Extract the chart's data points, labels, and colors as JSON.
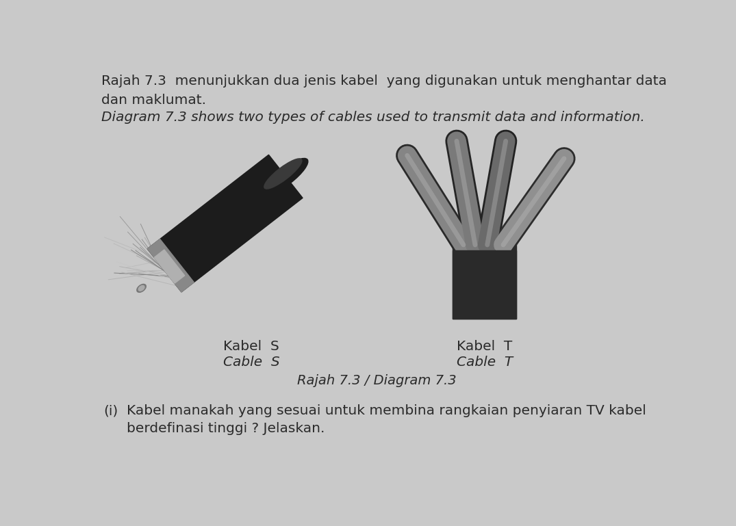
{
  "bg_color": "#c9c9c9",
  "text_color": "#2a2a2a",
  "title_line1": "Rajah 7.3  menunjukkan dua jenis kabel  yang digunakan untuk menghantar data",
  "title_line2": "dan maklumat.",
  "title_line3": "Diagram 7.3 shows two types of cables used to transmit data and information.",
  "label_s_line1": "Kabel  S",
  "label_s_line2": "Cable  S",
  "label_t_line1": "Kabel  T",
  "label_t_line2": "Cable  T",
  "diagram_caption": "Rajah 7.3 / Diagram 7.3",
  "question_prefix": "(i)",
  "question_line1": "Kabel manakah yang sesuai untuk membina rangkaian penyiaran TV kabel",
  "question_line2": "berdefinasi tinggi ? Jelaskan.",
  "title_fontsize": 14.5,
  "label_fontsize": 14.5,
  "caption_fontsize": 14,
  "question_fontsize": 14.5
}
